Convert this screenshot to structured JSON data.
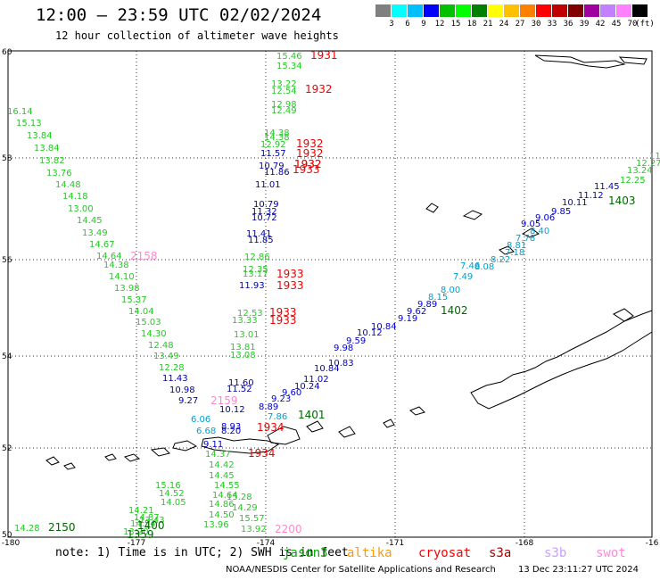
{
  "header": {
    "title": "12:00 — 23:59 UTC 02/02/2024",
    "subtitle": "12 hour collection of altimeter wave heights"
  },
  "color_scale": {
    "unit": "(ft)",
    "colors": [
      "#808080",
      "#00ffff",
      "#00bfff",
      "#0000ff",
      "#00c000",
      "#00ff00",
      "#008000",
      "#ffff00",
      "#ffc000",
      "#ff8000",
      "#ff0000",
      "#c00000",
      "#800000",
      "#a000a0",
      "#c080ff",
      "#ff80ff",
      "#000000"
    ],
    "labels": [
      "3",
      "6",
      "9",
      "12",
      "15",
      "18",
      "21",
      "24",
      "27",
      "30",
      "33",
      "36",
      "39",
      "42",
      "45",
      "70"
    ]
  },
  "axes": {
    "lon_labels": [
      "-180",
      "-177",
      "-174",
      "-171",
      "-168",
      "-16"
    ],
    "lat_labels": [
      "60",
      "58",
      "56",
      "54",
      "52",
      "50"
    ]
  },
  "tracks": {
    "green_west": {
      "color": "#22cc22",
      "values": [
        "16.14",
        "15.13",
        "13.84",
        "13.84",
        "13.82",
        "13.76",
        "14.48",
        "14.18",
        "13.00",
        "14.45",
        "13.49",
        "14.67",
        "14.64",
        "14.38",
        "14.10",
        "13.98",
        "15.37",
        "14.04",
        "15.03",
        "14.30",
        "12.48",
        "13.49",
        "12.28"
      ]
    },
    "green_south": {
      "color": "#22cc22",
      "values": [
        "14.37",
        "14.42",
        "15.16",
        "14.52",
        "14.05",
        "14.21",
        "14.87",
        "14.54",
        "13.43",
        "13.20",
        "14.45",
        "14.55",
        "14.64",
        "15.28",
        "14.86",
        "14.50",
        "13.96",
        "14.29",
        "15.57",
        "13.92",
        "14.28"
      ]
    },
    "green_central": {
      "color": "#22cc22",
      "values": [
        "15.46",
        "15.34",
        "13.22",
        "12.54",
        "12.98",
        "12.49",
        "14.38",
        "14.38",
        "12.92",
        "12.86",
        "12.35",
        "13.17",
        "12.53",
        "13.33",
        "13.01",
        "13.81",
        "13.08"
      ]
    },
    "navy_central": {
      "color": "#0000aa",
      "values": [
        "11.57",
        "10.79",
        "11.86",
        "11.01",
        "10.79",
        "11.32",
        "10.72",
        "11.41",
        "11.85",
        "11.93",
        "11.60",
        "11.52",
        "10.12",
        "11.43",
        "10.98",
        "9.27"
      ]
    },
    "blue_east": {
      "color": "#0000cc",
      "values": [
        "9.11",
        "8.20",
        "8.93",
        "8.89",
        "9.23",
        "9.60",
        "10.24",
        "11.02",
        "10.84",
        "10.83",
        "9.98",
        "9.59",
        "10.12",
        "10.84",
        "9.19",
        "9.62",
        "9.89",
        "11.45",
        "11.12",
        "10.11",
        "9.85",
        "9.06",
        "9.05"
      ]
    },
    "cyan_east": {
      "color": "#00a0d0",
      "values": [
        "6.06",
        "6.68",
        "7.86",
        "8.15",
        "8.00",
        "7.49",
        "7.46",
        "8.08",
        "8.22",
        "7.18",
        "8.81",
        "7.78",
        "8.40"
      ]
    },
    "green_east": {
      "color": "#22cc22",
      "values": [
        "12.25",
        "13.24",
        "12.27",
        "11"
      ]
    }
  },
  "time_labels": {
    "red": [
      "1931",
      "1932",
      "1932",
      "1932",
      "1932",
      "1932",
      "1933",
      "1933",
      "1933",
      "1933",
      "1933",
      "1934",
      "1934"
    ],
    "dark_green": [
      "1403",
      "1402",
      "1401",
      "2150",
      "1400",
      "1359"
    ],
    "pink": [
      "2158",
      "2159",
      "2200"
    ]
  },
  "footer": {
    "note": "note: 1) Time is in UTC; 2) SWH is in feet",
    "credit": "NOAA/NESDIS Center for Satellite Applications and Research",
    "stamp": "13 Dec 23:11:27 UTC 2024",
    "satellites": [
      {
        "name": "jason3",
        "color": "#00aa00"
      },
      {
        "name": "altika",
        "color": "#ff9900"
      },
      {
        "name": "cryosat",
        "color": "#ff0000"
      },
      {
        "name": "s3a",
        "color": "#aa0000"
      },
      {
        "name": "s3b",
        "color": "#c8a0ff"
      },
      {
        "name": "swot",
        "color": "#ff88dd"
      }
    ]
  }
}
